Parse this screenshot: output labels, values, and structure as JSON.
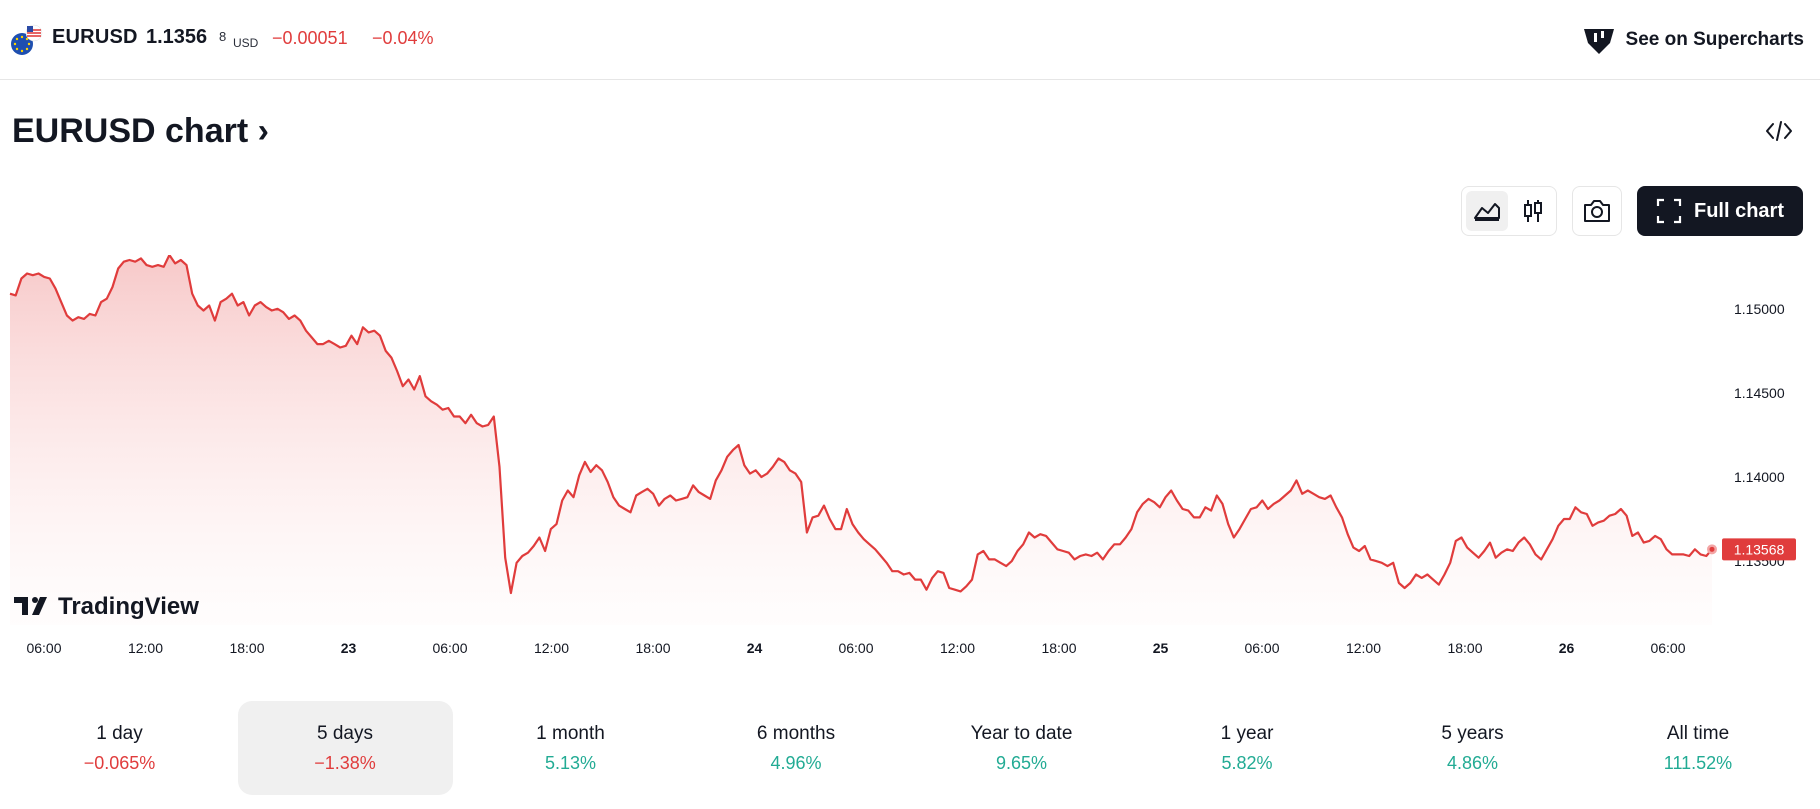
{
  "header": {
    "symbol": "EURUSD",
    "price_main": "1.1356",
    "price_sup": "8",
    "currency": "USD",
    "change": "−0.00051",
    "change_pct": "−0.04%",
    "supercharts_label": "See on Supercharts"
  },
  "title": "EURUSD chart ›",
  "toolbar": {
    "full_chart_label": "Full chart"
  },
  "colors": {
    "line": "#e03c3c",
    "negative": "#e03c3c",
    "positive": "#22ab94",
    "accent_dark": "#131722"
  },
  "icons": [
    "flag-icon",
    "tradingview-logo-icon",
    "code-embed-icon",
    "area-chart-icon",
    "candles-icon",
    "camera-icon",
    "fullscreen-icon"
  ],
  "watermark": "TradingView",
  "chart_data": {
    "type": "area",
    "x_ticks": [
      "06:00",
      "12:00",
      "18:00",
      "23",
      "06:00",
      "12:00",
      "18:00",
      "24",
      "06:00",
      "12:00",
      "18:00",
      "25",
      "06:00",
      "12:00",
      "18:00",
      "26",
      "06:00"
    ],
    "y_ticks": [
      "1.15000",
      "1.14500",
      "1.14000",
      "1.13500"
    ],
    "last_price_label": "1.13568",
    "ylim": [
      1.1312,
      1.1532
    ],
    "series": [
      {
        "values": [
          1.1509,
          1.1508,
          1.1518,
          1.1521,
          1.152,
          1.1521,
          1.1519,
          1.1518,
          1.1512,
          1.1504,
          1.1496,
          1.1493,
          1.1495,
          1.1494,
          1.1497,
          1.1496,
          1.1504,
          1.1506,
          1.1513,
          1.1524,
          1.1528,
          1.1529,
          1.1528,
          1.153,
          1.1526,
          1.1525,
          1.1526,
          1.1525,
          1.1532,
          1.1527,
          1.1529,
          1.1526,
          1.1509,
          1.1502,
          1.1499,
          1.1502,
          1.1493,
          1.1504,
          1.1506,
          1.1509,
          1.1502,
          1.1504,
          1.1496,
          1.1502,
          1.1504,
          1.1501,
          1.1499,
          1.15,
          1.1498,
          1.1494,
          1.1496,
          1.1493,
          1.1487,
          1.1483,
          1.1479,
          1.1479,
          1.1481,
          1.1479,
          1.1477,
          1.1478,
          1.1484,
          1.1479,
          1.1489,
          1.1486,
          1.1487,
          1.1484,
          1.1475,
          1.1471,
          1.1463,
          1.1454,
          1.1458,
          1.1452,
          1.146,
          1.1448,
          1.1445,
          1.1443,
          1.144,
          1.1441,
          1.1436,
          1.1436,
          1.1432,
          1.1437,
          1.1432,
          1.143,
          1.1431,
          1.1436,
          1.1406,
          1.1352,
          1.1331,
          1.1349,
          1.1353,
          1.1355,
          1.1359,
          1.1364,
          1.1356,
          1.1369,
          1.1372,
          1.1386,
          1.1392,
          1.1388,
          1.1401,
          1.1409,
          1.1403,
          1.1407,
          1.1404,
          1.1397,
          1.1388,
          1.1383,
          1.1381,
          1.1379,
          1.1389,
          1.1391,
          1.1393,
          1.139,
          1.1383,
          1.1387,
          1.1389,
          1.1386,
          1.1387,
          1.1388,
          1.1395,
          1.1391,
          1.1389,
          1.1387,
          1.1398,
          1.1404,
          1.1412,
          1.1416,
          1.1419,
          1.1407,
          1.1402,
          1.1404,
          1.14,
          1.1402,
          1.1406,
          1.1411,
          1.1409,
          1.1404,
          1.1402,
          1.1397,
          1.1367,
          1.1376,
          1.1377,
          1.1383,
          1.1375,
          1.1369,
          1.1369,
          1.1381,
          1.1372,
          1.1367,
          1.1363,
          1.136,
          1.1357,
          1.1353,
          1.1349,
          1.1344,
          1.1344,
          1.1342,
          1.1343,
          1.1339,
          1.1339,
          1.1333,
          1.134,
          1.1344,
          1.1343,
          1.1334,
          1.1333,
          1.1332,
          1.1335,
          1.1339,
          1.1354,
          1.1356,
          1.1351,
          1.1351,
          1.1349,
          1.1347,
          1.135,
          1.1356,
          1.136,
          1.1367,
          1.1364,
          1.1366,
          1.1365,
          1.1361,
          1.1357,
          1.1356,
          1.1355,
          1.1351,
          1.1353,
          1.1354,
          1.1353,
          1.1355,
          1.1351,
          1.1356,
          1.136,
          1.136,
          1.1364,
          1.1369,
          1.1379,
          1.1384,
          1.1387,
          1.1385,
          1.1382,
          1.1388,
          1.1392,
          1.1386,
          1.1381,
          1.138,
          1.1376,
          1.1376,
          1.1382,
          1.138,
          1.1389,
          1.1384,
          1.1372,
          1.1364,
          1.1369,
          1.1375,
          1.1381,
          1.1382,
          1.1386,
          1.1381,
          1.1384,
          1.1386,
          1.1389,
          1.1392,
          1.1398,
          1.139,
          1.1392,
          1.139,
          1.1388,
          1.1387,
          1.1389,
          1.1382,
          1.1376,
          1.1366,
          1.1358,
          1.1356,
          1.1359,
          1.1351,
          1.135,
          1.1349,
          1.1347,
          1.1349,
          1.1337,
          1.1334,
          1.1337,
          1.1342,
          1.134,
          1.1342,
          1.1339,
          1.1336,
          1.1342,
          1.1349,
          1.1362,
          1.1364,
          1.1358,
          1.1355,
          1.1352,
          1.1356,
          1.1361,
          1.1352,
          1.1355,
          1.1357,
          1.1356,
          1.1361,
          1.1364,
          1.136,
          1.1354,
          1.1351,
          1.1357,
          1.1363,
          1.1371,
          1.1375,
          1.1375,
          1.1382,
          1.1379,
          1.1378,
          1.1371,
          1.1373,
          1.1374,
          1.1377,
          1.1378,
          1.1381,
          1.1377,
          1.1365,
          1.1367,
          1.1361,
          1.1362,
          1.1365,
          1.1363,
          1.1357,
          1.1354,
          1.1354,
          1.1354,
          1.1353,
          1.1357,
          1.1354,
          1.1353,
          1.1357
        ]
      }
    ]
  },
  "periods": [
    {
      "label": "1 day",
      "value": "−0.065%",
      "sign": "neg"
    },
    {
      "label": "5 days",
      "value": "−1.38%",
      "sign": "neg",
      "active": true
    },
    {
      "label": "1 month",
      "value": "5.13%",
      "sign": "pos"
    },
    {
      "label": "6 months",
      "value": "4.96%",
      "sign": "pos"
    },
    {
      "label": "Year to date",
      "value": "9.65%",
      "sign": "pos"
    },
    {
      "label": "1 year",
      "value": "5.82%",
      "sign": "pos"
    },
    {
      "label": "5 years",
      "value": "4.86%",
      "sign": "pos"
    },
    {
      "label": "All time",
      "value": "111.52%",
      "sign": "pos"
    }
  ]
}
